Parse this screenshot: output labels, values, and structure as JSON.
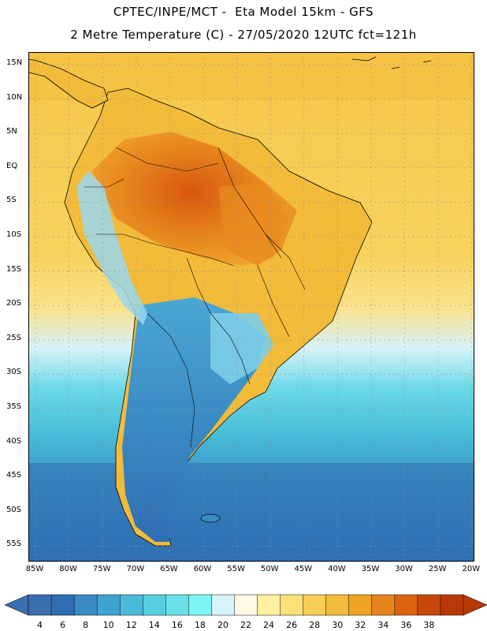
{
  "title": {
    "line1": "CPTEC/INPE/MCT -  Eta Model 15km - GFS",
    "line2": "2 Metre Temperature (C) - 27/05/2020 12UTC fct=121h"
  },
  "map": {
    "lat_labels": [
      "15N",
      "10N",
      "5N",
      "EQ",
      "5S",
      "10S",
      "15S",
      "20S",
      "25S",
      "30S",
      "35S",
      "40S",
      "45S",
      "50S",
      "55S"
    ],
    "lon_labels": [
      "85W",
      "80W",
      "75W",
      "70W",
      "65W",
      "60W",
      "55W",
      "50W",
      "45W",
      "40W",
      "35W",
      "30W",
      "25W",
      "20W"
    ]
  },
  "colorbar": {
    "labels": [
      "4",
      "6",
      "8",
      "10",
      "12",
      "14",
      "16",
      "18",
      "20",
      "22",
      "24",
      "26",
      "28",
      "30",
      "32",
      "34",
      "36",
      "38"
    ],
    "colors": [
      "#3a6fb0",
      "#2f6eb3",
      "#3a8bc4",
      "#3ea4cf",
      "#4bb9d9",
      "#58cfe0",
      "#6ae1ea",
      "#7df5f7",
      "#d8f4fb",
      "#fff9e6",
      "#fff1a0",
      "#fbe07a",
      "#f7cd55",
      "#f2bb3a",
      "#eda423",
      "#e6851c",
      "#dc6410",
      "#c74708",
      "#b83808"
    ],
    "under_color": "#3a6fb0",
    "over_color": "#b83808"
  }
}
